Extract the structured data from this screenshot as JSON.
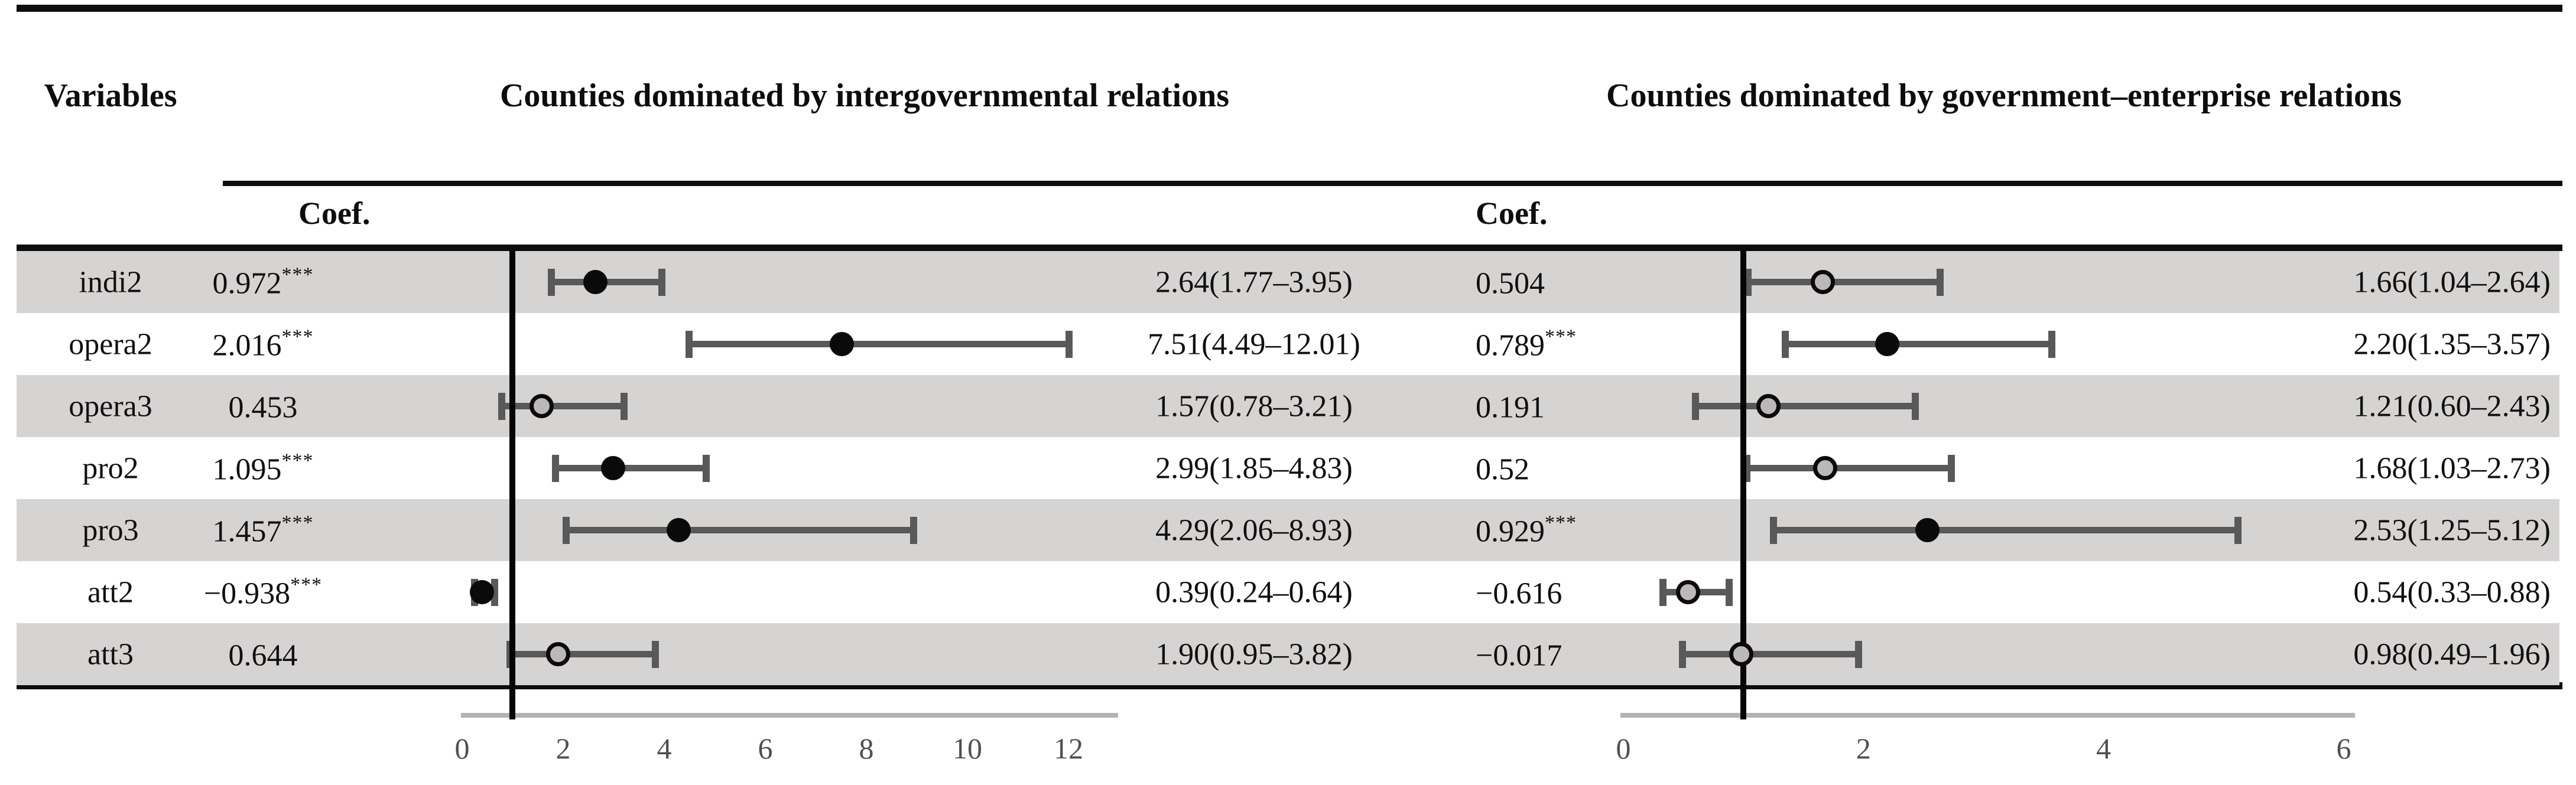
{
  "header": {
    "variables_label": "Variables",
    "left_panel_title": "Counties dominated by intergovernmental relations",
    "right_panel_title": "Counties dominated by government–enterprise relations",
    "coef_label_left": "Coef.",
    "coef_label_right": "Coef."
  },
  "colors": {
    "stripe_gray": "#d6d3d3",
    "errorbar_gray": "#595959",
    "marker_filled": "#0a0a0a",
    "marker_hollow_fill": "#bcb8b8",
    "reference_line": "#050505",
    "axis_line": "#b4b1b1",
    "tick_text": "#4f4f4f",
    "text": "#101010"
  },
  "rows": [
    {
      "variable": "indi2",
      "shaded": true,
      "left": {
        "coef": "0.972",
        "stars": "***",
        "or_label": "2.64(1.77–3.95)",
        "or": 2.64,
        "lo": 1.77,
        "hi": 3.95,
        "marker": "filled"
      },
      "right": {
        "coef": "0.504",
        "stars": "",
        "or_label": "1.66(1.04–2.64)",
        "or": 1.66,
        "lo": 1.04,
        "hi": 2.64,
        "marker": "hollow"
      }
    },
    {
      "variable": "opera2",
      "shaded": false,
      "left": {
        "coef": "2.016",
        "stars": "***",
        "or_label": "7.51(4.49–12.01)",
        "or": 7.51,
        "lo": 4.49,
        "hi": 12.01,
        "marker": "filled"
      },
      "right": {
        "coef": "0.789",
        "stars": "***",
        "or_label": "2.20(1.35–3.57)",
        "or": 2.2,
        "lo": 1.35,
        "hi": 3.57,
        "marker": "filled"
      }
    },
    {
      "variable": "opera3",
      "shaded": true,
      "left": {
        "coef": "0.453",
        "stars": "",
        "or_label": "1.57(0.78–3.21)",
        "or": 1.57,
        "lo": 0.78,
        "hi": 3.21,
        "marker": "hollow"
      },
      "right": {
        "coef": "0.191",
        "stars": "",
        "or_label": "1.21(0.60–2.43)",
        "or": 1.21,
        "lo": 0.6,
        "hi": 2.43,
        "marker": "hollow"
      }
    },
    {
      "variable": "pro2",
      "shaded": false,
      "left": {
        "coef": "1.095",
        "stars": "***",
        "or_label": "2.99(1.85–4.83)",
        "or": 2.99,
        "lo": 1.85,
        "hi": 4.83,
        "marker": "filled"
      },
      "right": {
        "coef": "0.52",
        "stars": "",
        "or_label": "1.68(1.03–2.73)",
        "or": 1.68,
        "lo": 1.03,
        "hi": 2.73,
        "marker": "hollow"
      }
    },
    {
      "variable": "pro3",
      "shaded": true,
      "left": {
        "coef": "1.457",
        "stars": "***",
        "or_label": "4.29(2.06–8.93)",
        "or": 4.29,
        "lo": 2.06,
        "hi": 8.93,
        "marker": "filled"
      },
      "right": {
        "coef": "0.929",
        "stars": "***",
        "or_label": "2.53(1.25–5.12)",
        "or": 2.53,
        "lo": 1.25,
        "hi": 5.12,
        "marker": "filled"
      }
    },
    {
      "variable": "att2",
      "shaded": false,
      "left": {
        "coef": "−0.938",
        "stars": "***",
        "or_label": "0.39(0.24–0.64)",
        "or": 0.39,
        "lo": 0.24,
        "hi": 0.64,
        "marker": "filled"
      },
      "right": {
        "coef": "−0.616",
        "stars": "",
        "or_label": "0.54(0.33–0.88)",
        "or": 0.54,
        "lo": 0.33,
        "hi": 0.88,
        "marker": "hollow"
      }
    },
    {
      "variable": "att3",
      "shaded": true,
      "left": {
        "coef": "0.644",
        "stars": "",
        "or_label": "1.90(0.95–3.82)",
        "or": 1.9,
        "lo": 0.95,
        "hi": 3.82,
        "marker": "hollow"
      },
      "right": {
        "coef": "−0.017",
        "stars": "",
        "or_label": "0.98(0.49–1.96)",
        "or": 0.98,
        "lo": 0.49,
        "hi": 1.96,
        "marker": "hollow"
      }
    }
  ],
  "axes": {
    "left": {
      "ticks": [
        "0",
        "2",
        "4",
        "6",
        "8",
        "10",
        "12"
      ],
      "tick_values": [
        0,
        2,
        4,
        6,
        8,
        10,
        12
      ]
    },
    "right": {
      "ticks": [
        "0",
        "2",
        "4",
        "6"
      ],
      "tick_values": [
        0,
        2,
        4,
        6
      ]
    }
  },
  "chart_data": [
    {
      "type": "scatter",
      "title": "Counties dominated by intergovernmental relations",
      "orientation": "horizontal-forest",
      "categories": [
        "indi2",
        "opera2",
        "opera3",
        "pro2",
        "pro3",
        "att2",
        "att3"
      ],
      "coef": [
        0.972,
        2.016,
        0.453,
        1.095,
        1.457,
        -0.938,
        0.644
      ],
      "significance": [
        "***",
        "***",
        "",
        "***",
        "***",
        "***",
        ""
      ],
      "odds_ratio": [
        2.64,
        7.51,
        1.57,
        2.99,
        4.29,
        0.39,
        1.9
      ],
      "ci_low": [
        1.77,
        4.49,
        0.78,
        1.85,
        2.06,
        0.24,
        0.95
      ],
      "ci_high": [
        3.95,
        12.01,
        3.21,
        4.83,
        8.93,
        0.64,
        3.82
      ],
      "or_labels": [
        "2.64(1.77–3.95)",
        "7.51(4.49–12.01)",
        "1.57(0.78–3.21)",
        "2.99(1.85–4.83)",
        "4.29(2.06–8.93)",
        "0.39(0.24–0.64)",
        "1.90(0.95–3.82)"
      ],
      "marker_style": [
        "filled",
        "filled",
        "hollow",
        "filled",
        "filled",
        "filled",
        "hollow"
      ],
      "xticks": [
        0,
        2,
        4,
        6,
        8,
        10,
        12
      ],
      "xlim": [
        0,
        13
      ],
      "reference_line_x": 1,
      "grid": false
    },
    {
      "type": "scatter",
      "title": "Counties dominated by government–enterprise relations",
      "orientation": "horizontal-forest",
      "categories": [
        "indi2",
        "opera2",
        "opera3",
        "pro2",
        "pro3",
        "att2",
        "att3"
      ],
      "coef": [
        0.504,
        0.789,
        0.191,
        0.52,
        0.929,
        -0.616,
        -0.017
      ],
      "significance": [
        "",
        "***",
        "",
        "",
        "***",
        "",
        ""
      ],
      "odds_ratio": [
        1.66,
        2.2,
        1.21,
        1.68,
        2.53,
        0.54,
        0.98
      ],
      "ci_low": [
        1.04,
        1.35,
        0.6,
        1.03,
        1.25,
        0.33,
        0.49
      ],
      "ci_high": [
        2.64,
        3.57,
        2.43,
        2.73,
        5.12,
        0.88,
        1.96
      ],
      "or_labels": [
        "1.66(1.04–2.64)",
        "2.20(1.35–3.57)",
        "1.21(0.60–2.43)",
        "1.68(1.03–2.73)",
        "2.53(1.25–5.12)",
        "0.54(0.33–0.88)",
        "0.98(0.49–1.96)"
      ],
      "marker_style": [
        "hollow",
        "filled",
        "hollow",
        "hollow",
        "filled",
        "hollow",
        "hollow"
      ],
      "xticks": [
        0,
        2,
        4,
        6
      ],
      "xlim": [
        0,
        6.1
      ],
      "reference_line_x": 1,
      "grid": false
    }
  ]
}
